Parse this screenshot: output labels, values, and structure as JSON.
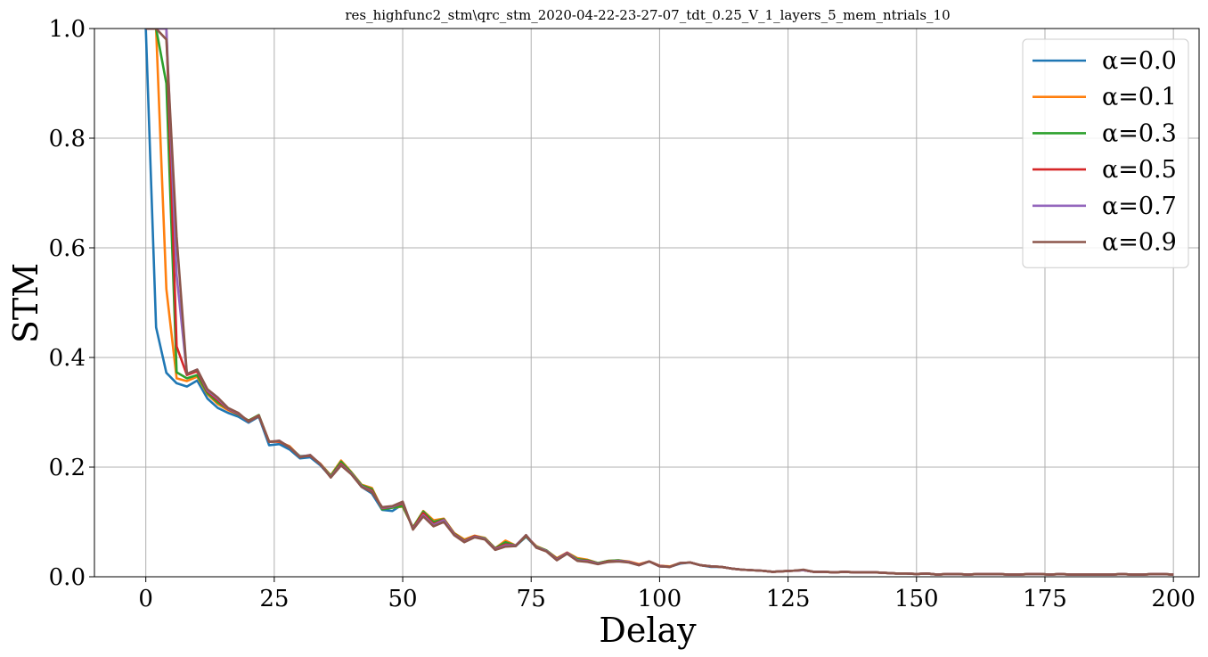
{
  "chart_data": {
    "type": "line",
    "title": "res_highfunc2_stm\\qrc_stm_2020-04-22-23-27-07_tdt_0.25_V_1_layers_5_mem_ntrials_10",
    "xlabel": "Delay",
    "ylabel": "STM",
    "xlim": [
      -10,
      205
    ],
    "ylim": [
      0,
      1.0
    ],
    "xticks": [
      0,
      25,
      50,
      75,
      100,
      125,
      150,
      175,
      200
    ],
    "yticks": [
      0.0,
      0.2,
      0.4,
      0.6,
      0.8,
      1.0
    ],
    "xtick_labels": [
      "0",
      "25",
      "50",
      "75",
      "100",
      "125",
      "150",
      "175",
      "200"
    ],
    "ytick_labels": [
      "0.0",
      "0.2",
      "0.4",
      "0.6",
      "0.8",
      "1.0"
    ],
    "grid": true,
    "legend_position": "top-right",
    "x": [
      0,
      2,
      4,
      6,
      8,
      10,
      12,
      14,
      16,
      18,
      20,
      22,
      24,
      26,
      28,
      30,
      32,
      34,
      36,
      38,
      40,
      42,
      44,
      46,
      48,
      50,
      52,
      54,
      56,
      58,
      60,
      62,
      64,
      66,
      68,
      70,
      72,
      74,
      76,
      78,
      80,
      82,
      84,
      86,
      88,
      90,
      92,
      94,
      96,
      98,
      100,
      102,
      104,
      106,
      108,
      110,
      112,
      114,
      116,
      118,
      120,
      122,
      124,
      126,
      128,
      130,
      132,
      134,
      136,
      138,
      140,
      142,
      144,
      146,
      148,
      150,
      152,
      154,
      156,
      158,
      160,
      162,
      164,
      166,
      168,
      170,
      172,
      174,
      176,
      178,
      180,
      182,
      184,
      186,
      188,
      190,
      192,
      194,
      196,
      198,
      200
    ],
    "series": [
      {
        "name": "α=0.0",
        "color": "#1f77b4",
        "values": [
          1.0,
          0.455,
          0.372,
          0.353,
          0.347,
          0.358,
          0.325,
          0.308,
          0.299,
          0.292,
          0.281,
          0.292,
          0.24,
          0.242,
          0.232,
          0.216,
          0.218,
          0.203,
          0.182,
          0.206,
          0.188,
          0.164,
          0.152,
          0.122,
          0.12,
          0.132,
          0.088,
          0.114,
          0.096,
          0.103,
          0.078,
          0.064,
          0.072,
          0.069,
          0.051,
          0.057,
          0.056,
          0.073,
          0.054,
          0.047,
          0.032,
          0.043,
          0.03,
          0.028,
          0.024,
          0.028,
          0.029,
          0.027,
          0.022,
          0.028,
          0.019,
          0.018,
          0.024,
          0.026,
          0.021,
          0.018,
          0.018,
          0.015,
          0.013,
          0.012,
          0.011,
          0.009,
          0.01,
          0.011,
          0.012,
          0.009,
          0.009,
          0.008,
          0.009,
          0.008,
          0.008,
          0.008,
          0.007,
          0.006,
          0.006,
          0.005,
          0.006,
          0.004,
          0.005,
          0.005,
          0.004,
          0.005,
          0.005,
          0.005,
          0.004,
          0.004,
          0.005,
          0.005,
          0.004,
          0.005,
          0.004,
          0.004,
          0.004,
          0.004,
          0.004,
          0.005,
          0.004,
          0.004,
          0.005,
          0.005,
          0.004
        ]
      },
      {
        "name": "α=0.1",
        "color": "#ff7f0e",
        "values": [
          1.0,
          1.0,
          0.525,
          0.362,
          0.357,
          0.365,
          0.333,
          0.315,
          0.304,
          0.296,
          0.284,
          0.294,
          0.247,
          0.246,
          0.238,
          0.219,
          0.221,
          0.206,
          0.185,
          0.212,
          0.191,
          0.168,
          0.162,
          0.124,
          0.126,
          0.128,
          0.09,
          0.12,
          0.103,
          0.106,
          0.08,
          0.068,
          0.075,
          0.071,
          0.052,
          0.066,
          0.057,
          0.074,
          0.056,
          0.048,
          0.034,
          0.044,
          0.034,
          0.031,
          0.025,
          0.029,
          0.03,
          0.028,
          0.023,
          0.028,
          0.02,
          0.019,
          0.025,
          0.026,
          0.021,
          0.019,
          0.018,
          0.015,
          0.013,
          0.012,
          0.011,
          0.009,
          0.01,
          0.011,
          0.012,
          0.009,
          0.009,
          0.008,
          0.009,
          0.008,
          0.008,
          0.008,
          0.007,
          0.006,
          0.006,
          0.005,
          0.006,
          0.004,
          0.005,
          0.005,
          0.004,
          0.005,
          0.005,
          0.005,
          0.004,
          0.004,
          0.005,
          0.005,
          0.004,
          0.005,
          0.004,
          0.004,
          0.004,
          0.004,
          0.004,
          0.005,
          0.004,
          0.004,
          0.005,
          0.005,
          0.004
        ]
      },
      {
        "name": "α=0.3",
        "color": "#2ca02c",
        "values": [
          1.0,
          1.0,
          0.9,
          0.373,
          0.362,
          0.368,
          0.335,
          0.318,
          0.306,
          0.296,
          0.285,
          0.295,
          0.246,
          0.247,
          0.236,
          0.22,
          0.221,
          0.205,
          0.184,
          0.21,
          0.19,
          0.167,
          0.16,
          0.123,
          0.126,
          0.129,
          0.09,
          0.119,
          0.1,
          0.105,
          0.079,
          0.066,
          0.074,
          0.07,
          0.052,
          0.063,
          0.057,
          0.074,
          0.055,
          0.048,
          0.033,
          0.044,
          0.032,
          0.03,
          0.025,
          0.029,
          0.03,
          0.027,
          0.022,
          0.028,
          0.02,
          0.018,
          0.025,
          0.026,
          0.021,
          0.019,
          0.018,
          0.015,
          0.013,
          0.012,
          0.011,
          0.009,
          0.01,
          0.011,
          0.012,
          0.009,
          0.009,
          0.008,
          0.009,
          0.008,
          0.008,
          0.008,
          0.007,
          0.006,
          0.006,
          0.005,
          0.006,
          0.004,
          0.005,
          0.005,
          0.004,
          0.005,
          0.005,
          0.005,
          0.004,
          0.004,
          0.005,
          0.005,
          0.004,
          0.005,
          0.004,
          0.004,
          0.004,
          0.004,
          0.004,
          0.005,
          0.004,
          0.004,
          0.005,
          0.005,
          0.004
        ]
      },
      {
        "name": "α=0.5",
        "color": "#d62728",
        "values": [
          1.0,
          1.0,
          1.0,
          0.42,
          0.368,
          0.375,
          0.338,
          0.322,
          0.306,
          0.297,
          0.284,
          0.294,
          0.246,
          0.247,
          0.236,
          0.219,
          0.221,
          0.205,
          0.182,
          0.206,
          0.188,
          0.165,
          0.157,
          0.125,
          0.128,
          0.134,
          0.088,
          0.116,
          0.096,
          0.104,
          0.078,
          0.065,
          0.074,
          0.069,
          0.051,
          0.059,
          0.057,
          0.075,
          0.054,
          0.047,
          0.032,
          0.044,
          0.03,
          0.029,
          0.024,
          0.028,
          0.029,
          0.027,
          0.022,
          0.028,
          0.02,
          0.018,
          0.025,
          0.026,
          0.021,
          0.019,
          0.018,
          0.015,
          0.013,
          0.012,
          0.011,
          0.009,
          0.01,
          0.011,
          0.012,
          0.009,
          0.009,
          0.008,
          0.009,
          0.008,
          0.008,
          0.008,
          0.007,
          0.006,
          0.006,
          0.005,
          0.006,
          0.004,
          0.005,
          0.005,
          0.004,
          0.005,
          0.005,
          0.005,
          0.004,
          0.004,
          0.005,
          0.005,
          0.004,
          0.005,
          0.004,
          0.004,
          0.004,
          0.004,
          0.004,
          0.005,
          0.004,
          0.004,
          0.005,
          0.005,
          0.004
        ]
      },
      {
        "name": "α=0.7",
        "color": "#9467bd",
        "values": [
          1.0,
          1.0,
          1.0,
          0.55,
          0.37,
          0.378,
          0.34,
          0.325,
          0.307,
          0.298,
          0.283,
          0.293,
          0.246,
          0.248,
          0.236,
          0.219,
          0.222,
          0.205,
          0.182,
          0.204,
          0.188,
          0.165,
          0.155,
          0.126,
          0.128,
          0.136,
          0.087,
          0.112,
          0.094,
          0.103,
          0.077,
          0.064,
          0.073,
          0.069,
          0.05,
          0.057,
          0.057,
          0.076,
          0.054,
          0.047,
          0.031,
          0.043,
          0.03,
          0.028,
          0.024,
          0.027,
          0.029,
          0.027,
          0.021,
          0.028,
          0.019,
          0.018,
          0.025,
          0.026,
          0.021,
          0.019,
          0.018,
          0.015,
          0.013,
          0.012,
          0.011,
          0.009,
          0.01,
          0.011,
          0.012,
          0.009,
          0.009,
          0.008,
          0.009,
          0.008,
          0.008,
          0.008,
          0.007,
          0.006,
          0.006,
          0.005,
          0.006,
          0.004,
          0.005,
          0.005,
          0.004,
          0.005,
          0.005,
          0.005,
          0.004,
          0.004,
          0.005,
          0.005,
          0.004,
          0.005,
          0.004,
          0.004,
          0.004,
          0.004,
          0.004,
          0.005,
          0.004,
          0.004,
          0.005,
          0.005,
          0.004
        ]
      },
      {
        "name": "α=0.9",
        "color": "#8c564b",
        "values": [
          1.0,
          1.0,
          0.98,
          0.62,
          0.37,
          0.378,
          0.342,
          0.327,
          0.308,
          0.299,
          0.283,
          0.293,
          0.246,
          0.248,
          0.236,
          0.218,
          0.222,
          0.205,
          0.181,
          0.203,
          0.187,
          0.164,
          0.154,
          0.127,
          0.129,
          0.137,
          0.086,
          0.11,
          0.092,
          0.1,
          0.076,
          0.063,
          0.072,
          0.068,
          0.049,
          0.055,
          0.056,
          0.076,
          0.053,
          0.046,
          0.03,
          0.042,
          0.029,
          0.027,
          0.023,
          0.027,
          0.028,
          0.026,
          0.021,
          0.028,
          0.019,
          0.018,
          0.025,
          0.026,
          0.021,
          0.019,
          0.018,
          0.015,
          0.013,
          0.012,
          0.011,
          0.009,
          0.01,
          0.011,
          0.013,
          0.009,
          0.009,
          0.008,
          0.009,
          0.008,
          0.008,
          0.008,
          0.007,
          0.006,
          0.006,
          0.005,
          0.006,
          0.004,
          0.005,
          0.005,
          0.004,
          0.005,
          0.005,
          0.005,
          0.004,
          0.004,
          0.005,
          0.005,
          0.004,
          0.005,
          0.004,
          0.004,
          0.004,
          0.004,
          0.004,
          0.005,
          0.004,
          0.004,
          0.005,
          0.005,
          0.004
        ]
      }
    ]
  }
}
